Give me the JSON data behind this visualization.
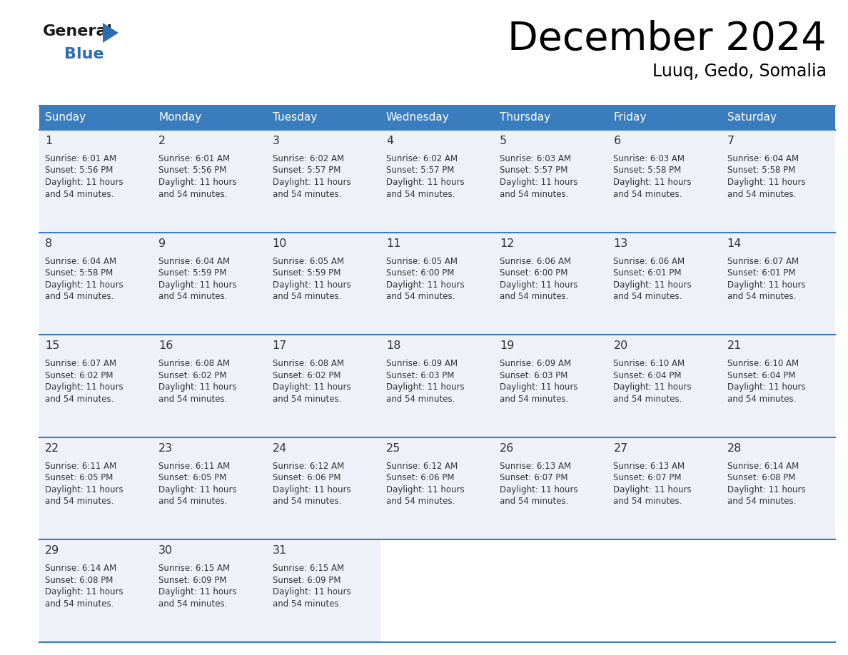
{
  "title": "December 2024",
  "subtitle": "Luuq, Gedo, Somalia",
  "days_of_week": [
    "Sunday",
    "Monday",
    "Tuesday",
    "Wednesday",
    "Thursday",
    "Friday",
    "Saturday"
  ],
  "header_bg": "#3a7dbf",
  "header_text": "#ffffff",
  "border_color": "#3a7dbf",
  "cell_bg": "#eef2f8",
  "empty_bg": "#ffffff",
  "text_color": "#333333",
  "logo_black": "#1a1a1a",
  "logo_blue": "#2a6db5",
  "calendar_data": [
    [
      {
        "day": "1",
        "sunrise": "6:01 AM",
        "sunset": "5:56 PM"
      },
      {
        "day": "2",
        "sunrise": "6:01 AM",
        "sunset": "5:56 PM"
      },
      {
        "day": "3",
        "sunrise": "6:02 AM",
        "sunset": "5:57 PM"
      },
      {
        "day": "4",
        "sunrise": "6:02 AM",
        "sunset": "5:57 PM"
      },
      {
        "day": "5",
        "sunrise": "6:03 AM",
        "sunset": "5:57 PM"
      },
      {
        "day": "6",
        "sunrise": "6:03 AM",
        "sunset": "5:58 PM"
      },
      {
        "day": "7",
        "sunrise": "6:04 AM",
        "sunset": "5:58 PM"
      }
    ],
    [
      {
        "day": "8",
        "sunrise": "6:04 AM",
        "sunset": "5:58 PM"
      },
      {
        "day": "9",
        "sunrise": "6:04 AM",
        "sunset": "5:59 PM"
      },
      {
        "day": "10",
        "sunrise": "6:05 AM",
        "sunset": "5:59 PM"
      },
      {
        "day": "11",
        "sunrise": "6:05 AM",
        "sunset": "6:00 PM"
      },
      {
        "day": "12",
        "sunrise": "6:06 AM",
        "sunset": "6:00 PM"
      },
      {
        "day": "13",
        "sunrise": "6:06 AM",
        "sunset": "6:01 PM"
      },
      {
        "day": "14",
        "sunrise": "6:07 AM",
        "sunset": "6:01 PM"
      }
    ],
    [
      {
        "day": "15",
        "sunrise": "6:07 AM",
        "sunset": "6:02 PM"
      },
      {
        "day": "16",
        "sunrise": "6:08 AM",
        "sunset": "6:02 PM"
      },
      {
        "day": "17",
        "sunrise": "6:08 AM",
        "sunset": "6:02 PM"
      },
      {
        "day": "18",
        "sunrise": "6:09 AM",
        "sunset": "6:03 PM"
      },
      {
        "day": "19",
        "sunrise": "6:09 AM",
        "sunset": "6:03 PM"
      },
      {
        "day": "20",
        "sunrise": "6:10 AM",
        "sunset": "6:04 PM"
      },
      {
        "day": "21",
        "sunrise": "6:10 AM",
        "sunset": "6:04 PM"
      }
    ],
    [
      {
        "day": "22",
        "sunrise": "6:11 AM",
        "sunset": "6:05 PM"
      },
      {
        "day": "23",
        "sunrise": "6:11 AM",
        "sunset": "6:05 PM"
      },
      {
        "day": "24",
        "sunrise": "6:12 AM",
        "sunset": "6:06 PM"
      },
      {
        "day": "25",
        "sunrise": "6:12 AM",
        "sunset": "6:06 PM"
      },
      {
        "day": "26",
        "sunrise": "6:13 AM",
        "sunset": "6:07 PM"
      },
      {
        "day": "27",
        "sunrise": "6:13 AM",
        "sunset": "6:07 PM"
      },
      {
        "day": "28",
        "sunrise": "6:14 AM",
        "sunset": "6:08 PM"
      }
    ],
    [
      {
        "day": "29",
        "sunrise": "6:14 AM",
        "sunset": "6:08 PM"
      },
      {
        "day": "30",
        "sunrise": "6:15 AM",
        "sunset": "6:09 PM"
      },
      {
        "day": "31",
        "sunrise": "6:15 AM",
        "sunset": "6:09 PM"
      },
      null,
      null,
      null,
      null
    ]
  ],
  "daylight_line1": "Daylight: 11 hours",
  "daylight_line2": "and 54 minutes."
}
